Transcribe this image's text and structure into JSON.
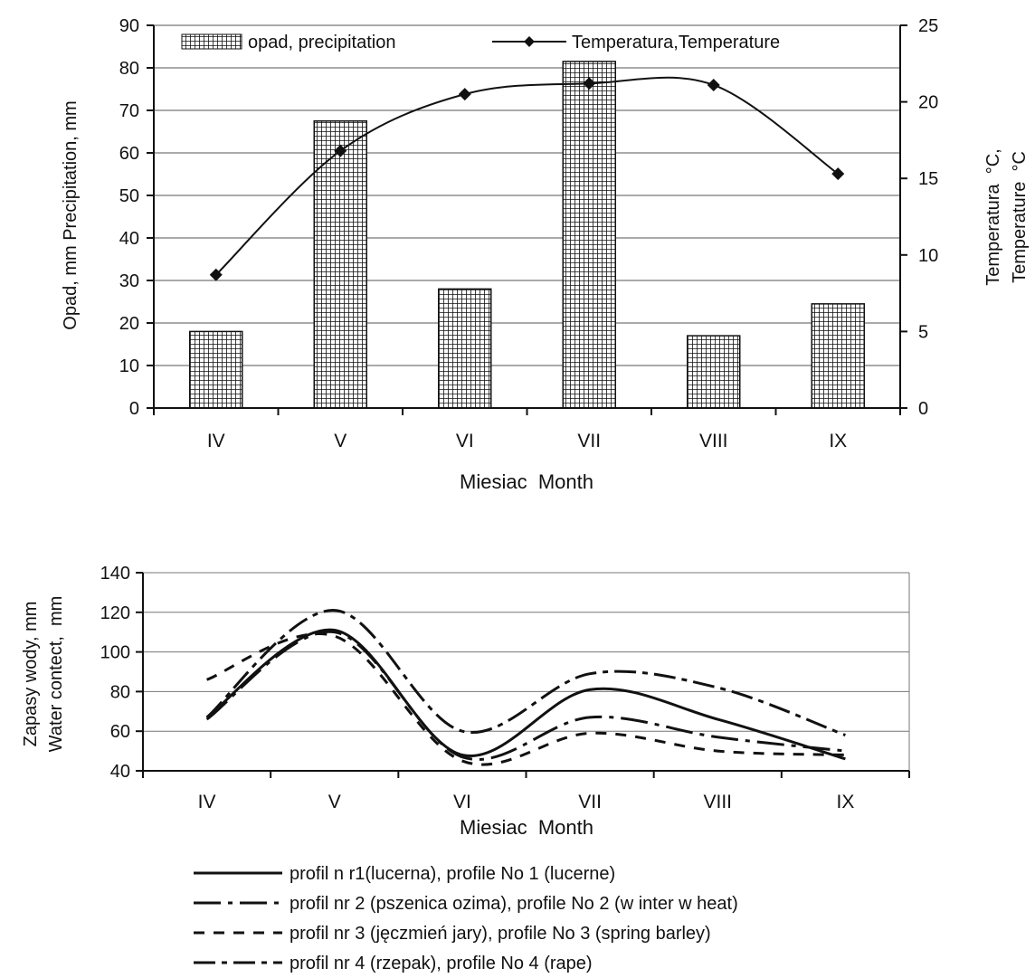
{
  "chart_data": [
    {
      "type": "bar",
      "title": "",
      "categories": [
        "IV",
        "V",
        "VI",
        "VII",
        "VIII",
        "IX"
      ],
      "xlabel": "Miesiac  Month",
      "ylabel": "Opad, mm Precipitation, mm",
      "y2label_line1": "Temperatura  °C,",
      "y2label_line2": "Temperature  °C",
      "ylim": [
        0,
        90
      ],
      "y2lim": [
        0,
        25
      ],
      "yticks": [
        0,
        10,
        20,
        30,
        40,
        50,
        60,
        70,
        80,
        90
      ],
      "y2ticks": [
        0,
        5,
        10,
        15,
        20,
        25
      ],
      "grid": true,
      "legend_position": "top",
      "series": [
        {
          "name": "opad, precipitation",
          "type": "bar",
          "axis": "left",
          "values": [
            18,
            67.5,
            28,
            81.5,
            17,
            24.5
          ]
        },
        {
          "name": "Temperatura,Temperature",
          "type": "line",
          "axis": "right",
          "values": [
            8.7,
            16.8,
            20.5,
            21.2,
            21.1,
            15.3
          ]
        }
      ]
    },
    {
      "type": "line",
      "title": "",
      "categories": [
        "IV",
        "V",
        "VI",
        "VII",
        "VIII",
        "IX"
      ],
      "xlabel": "Miesiac  Month",
      "ylabel_line1": "Zapasy wody, mm",
      "ylabel_line2": "Water contect,  mm",
      "ylim": [
        40,
        140
      ],
      "yticks": [
        40,
        60,
        80,
        100,
        120,
        140
      ],
      "grid": true,
      "legend_position": "bottom",
      "series": [
        {
          "name": "profil n r1(lucerna), profile No 1 (lucerne)",
          "style": "solid",
          "values": [
            67,
            111,
            48,
            81,
            66,
            46
          ]
        },
        {
          "name": "profil nr 2 (pszenica ozima), profile No 2 (w inter w heat)",
          "style": "longdash-dot",
          "values": [
            66,
            110,
            47,
            67,
            57,
            50
          ]
        },
        {
          "name": "profil nr 3 (jęczmień jary), profile No 3 (spring barley)",
          "style": "dashed",
          "values": [
            86,
            108,
            45,
            59,
            50,
            48
          ]
        },
        {
          "name": "profil nr 4 (rzepak), profile No 4 (rape)",
          "style": "dash-dot",
          "values": [
            67,
            121,
            60,
            89,
            82,
            58
          ]
        }
      ]
    }
  ]
}
